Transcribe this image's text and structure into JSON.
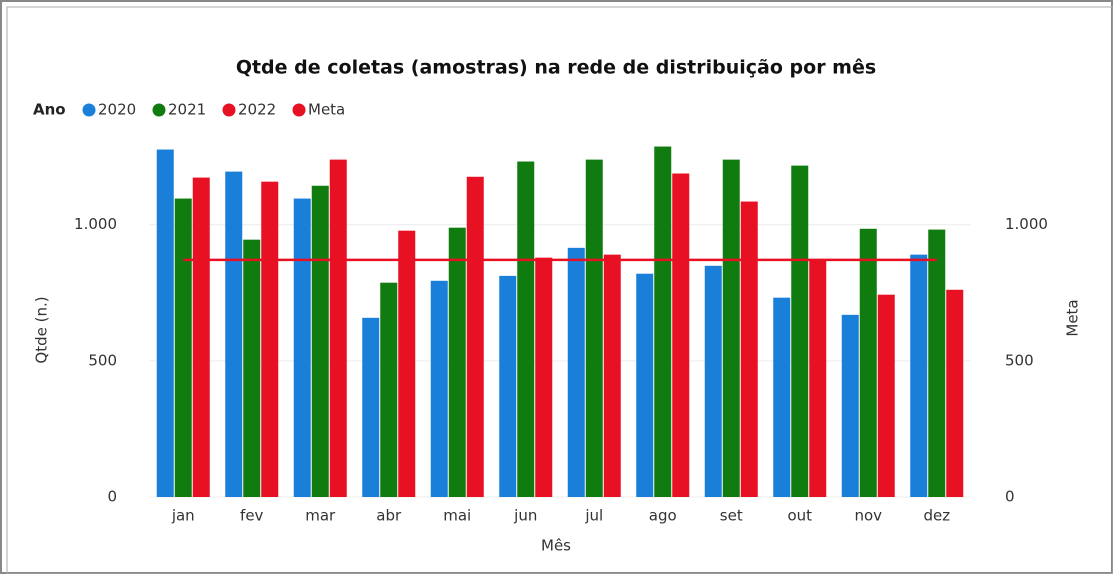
{
  "chart_data": {
    "type": "bar",
    "title": "Qtde de coletas (amostras) na rede de distribuição por mês",
    "legend_title": "Ano",
    "x_label": "Mês",
    "y_label": "Qtde (n.)",
    "y2_label": "Meta",
    "categories": [
      "jan",
      "fev",
      "mar",
      "abr",
      "mai",
      "jun",
      "jul",
      "ago",
      "set",
      "out",
      "nov",
      "dez"
    ],
    "series": [
      {
        "name": "2020",
        "color": "#1a7fd9",
        "values": [
          1276,
          1195,
          1096,
          658,
          794,
          812,
          915,
          820,
          849,
          732,
          669,
          890
        ]
      },
      {
        "name": "2021",
        "color": "#107c10",
        "values": [
          1096,
          945,
          1143,
          787,
          989,
          1232,
          1239,
          1287,
          1239,
          1217,
          985,
          982
        ]
      },
      {
        "name": "2022",
        "color": "#e81123",
        "values": [
          1173,
          1158,
          1239,
          978,
          1176,
          879,
          890,
          1188,
          1085,
          871,
          743,
          761
        ]
      },
      {
        "name": "Meta",
        "color": "#e81123",
        "type": "line",
        "axis": "y2",
        "values": [
          871,
          871,
          871,
          871,
          871,
          871,
          871,
          871,
          871,
          871,
          871,
          871
        ]
      }
    ],
    "ylim": [
      0,
      1300
    ],
    "yticks": [
      0,
      500,
      {
        "value": 1000,
        "label": "1.000"
      }
    ],
    "y2lim": [
      0,
      1300
    ],
    "y2ticks": [
      0,
      500,
      {
        "value": 1000,
        "label": "1.000"
      }
    ],
    "grid": true,
    "legend_position": "top-left"
  }
}
